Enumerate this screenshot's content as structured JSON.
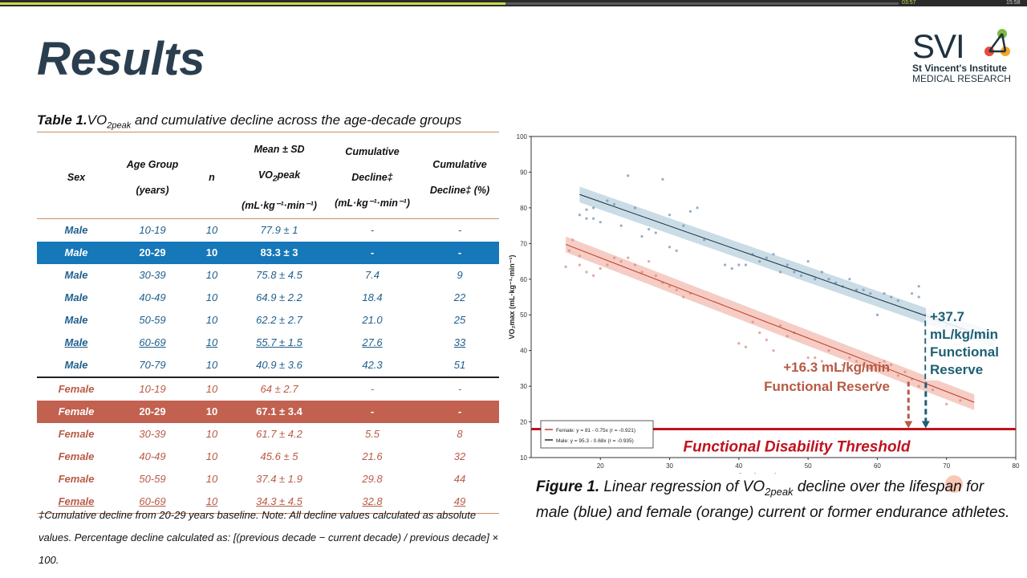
{
  "player": {
    "elapsed": "03:57",
    "total": "15:58",
    "progress": 0.49
  },
  "slide": {
    "title": "Results",
    "logo": {
      "svi": "SVI",
      "line1": "St Vincent's Institute",
      "line2": "MEDICAL RESEARCH"
    }
  },
  "table": {
    "caption_bold": "Table 1.",
    "caption_pre": "VO",
    "caption_sub": "2peak",
    "caption_post": " and cumulative decline across the age-decade groups",
    "headers": {
      "sex": "Sex",
      "age_l1": "Age Group",
      "age_l2": "(years)",
      "n": "n",
      "mean_l1": "Mean ± SD",
      "mean_l2_pre": "VO",
      "mean_l2_sub": "2",
      "mean_l2_post": "peak",
      "mean_l3": "(mL·kg⁻¹·min⁻¹)",
      "cum_l1": "Cumulative",
      "cum_l2": "Decline‡",
      "cum_l3": "(mL·kg⁻¹·min⁻¹)",
      "pct_l1": "Cumulative",
      "pct_l2": "Decline‡ (%)"
    },
    "rows": [
      {
        "sex": "Male",
        "age": "10-19",
        "n": "10",
        "mean": "77.9 ± 1",
        "cum": "-",
        "pct": "-"
      },
      {
        "sex": "Male",
        "age": "20-29",
        "n": "10",
        "mean": "83.3 ± 3",
        "cum": "-",
        "pct": "-"
      },
      {
        "sex": "Male",
        "age": "30-39",
        "n": "10",
        "mean": "75.8 ± 4.5",
        "cum": "7.4",
        "pct": "9"
      },
      {
        "sex": "Male",
        "age": "40-49",
        "n": "10",
        "mean": "64.9 ± 2.2",
        "cum": "18.4",
        "pct": "22"
      },
      {
        "sex": "Male",
        "age": "50-59",
        "n": "10",
        "mean": "62.2 ± 2.7",
        "cum": "21.0",
        "pct": "25"
      },
      {
        "sex": "Male",
        "age": "60-69",
        "n": "10",
        "mean": "55.7 ± 1.5",
        "cum": "27.6",
        "pct": "33"
      },
      {
        "sex": "Male",
        "age": "70-79",
        "n": "10",
        "mean": "40.9 ± 3.6",
        "cum": "42.3",
        "pct": "51"
      },
      {
        "sex": "Female",
        "age": "10-19",
        "n": "10",
        "mean": "64 ± 2.7",
        "cum": "-",
        "pct": "-"
      },
      {
        "sex": "Female",
        "age": "20-29",
        "n": "10",
        "mean": "67.1 ± 3.4",
        "cum": "-",
        "pct": "-"
      },
      {
        "sex": "Female",
        "age": "30-39",
        "n": "10",
        "mean": "61.7 ± 4.2",
        "cum": "5.5",
        "pct": "8"
      },
      {
        "sex": "Female",
        "age": "40-49",
        "n": "10",
        "mean": "45.6 ± 5",
        "cum": "21.6",
        "pct": "32"
      },
      {
        "sex": "Female",
        "age": "50-59",
        "n": "10",
        "mean": "37.4 ± 1.9",
        "cum": "29.8",
        "pct": "44"
      },
      {
        "sex": "Female",
        "age": "60-69",
        "n": "10",
        "mean": "34.3 ± 4.5",
        "cum": "32.8",
        "pct": "49"
      }
    ],
    "footnote": "‡Cumulative decline from 20-29 years baseline. Note: All decline values calculated as absolute values. Percentage decline calculated as: [(previous decade − current decade) / previous decade] × 100."
  },
  "figure": {
    "caption_bold": "Figure 1.",
    "caption_pre": " Linear regression of VO",
    "caption_sub": "2peak",
    "caption_post": " decline over the lifespan for male (blue) and female (orange) current or former endurance athletes."
  },
  "colors": {
    "male": "#1e5f8c",
    "female": "#c2614f",
    "threshold": "#c0121e",
    "male_hl": "#1677b9"
  },
  "chart_data": {
    "type": "scatter",
    "xlabel": "Age (years)",
    "ylabel": "VO₂max (mL·kg⁻¹·min⁻¹)",
    "xlim": [
      10,
      80
    ],
    "ylim": [
      10,
      100
    ],
    "xticks": [
      20,
      30,
      40,
      50,
      60,
      70,
      80
    ],
    "yticks": [
      10,
      20,
      30,
      40,
      50,
      60,
      70,
      80,
      90,
      100
    ],
    "grid": false,
    "legend_placement": "bottom-left",
    "series": [
      {
        "name": "Female: y = 81 - 0.75x (r = -0.921)",
        "color": "#e07b6a",
        "intercept": 81,
        "slope": -0.75,
        "x_range": [
          15,
          74
        ],
        "points": [
          [
            15,
            63.5
          ],
          [
            15.5,
            68
          ],
          [
            16,
            71
          ],
          [
            17,
            64
          ],
          [
            17,
            66.5
          ],
          [
            18,
            62
          ],
          [
            19,
            61
          ],
          [
            20,
            63
          ],
          [
            21,
            64
          ],
          [
            22,
            66
          ],
          [
            23,
            65
          ],
          [
            24,
            66
          ],
          [
            25,
            64
          ],
          [
            26,
            62
          ],
          [
            27,
            65
          ],
          [
            28,
            61
          ],
          [
            29,
            59
          ],
          [
            30,
            58
          ],
          [
            31,
            57
          ],
          [
            32,
            55
          ],
          [
            33,
            56
          ],
          [
            40,
            42
          ],
          [
            41,
            41
          ],
          [
            42,
            48
          ],
          [
            43,
            45
          ],
          [
            44,
            43
          ],
          [
            45,
            40
          ],
          [
            46,
            47
          ],
          [
            47,
            44
          ],
          [
            48,
            45
          ],
          [
            50,
            38
          ],
          [
            51,
            38
          ],
          [
            52,
            37
          ],
          [
            53,
            40
          ],
          [
            54,
            35
          ],
          [
            55,
            36
          ],
          [
            56,
            38
          ],
          [
            57,
            37
          ],
          [
            58,
            36
          ],
          [
            59,
            35
          ],
          [
            60,
            31
          ],
          [
            61,
            37
          ],
          [
            62,
            36
          ],
          [
            63,
            33
          ],
          [
            64,
            34
          ],
          [
            65,
            32
          ],
          [
            66,
            30
          ],
          [
            67,
            31
          ],
          [
            68,
            29
          ],
          [
            70,
            25
          ],
          [
            72,
            26
          ]
        ]
      },
      {
        "name": "Male: y = 95.3 - 0.68x (r = -0.935)",
        "color": "#4a7fa8",
        "intercept": 95.3,
        "slope": -0.68,
        "x_range": [
          17,
          77
        ],
        "points": [
          [
            17,
            78
          ],
          [
            18,
            77
          ],
          [
            18,
            79.5
          ],
          [
            19,
            80
          ],
          [
            19,
            77
          ],
          [
            20,
            76
          ],
          [
            21,
            82
          ],
          [
            22,
            81
          ],
          [
            23,
            75
          ],
          [
            24,
            89
          ],
          [
            25,
            80
          ],
          [
            26,
            72
          ],
          [
            27,
            74
          ],
          [
            28,
            73
          ],
          [
            29,
            88
          ],
          [
            30,
            78
          ],
          [
            30,
            69
          ],
          [
            31,
            68
          ],
          [
            32,
            75
          ],
          [
            33,
            79
          ],
          [
            34,
            80
          ],
          [
            35,
            71
          ],
          [
            38,
            64
          ],
          [
            39,
            63
          ],
          [
            40,
            64
          ],
          [
            41,
            64
          ],
          [
            42,
            67
          ],
          [
            43,
            65
          ],
          [
            44,
            66
          ],
          [
            45,
            67
          ],
          [
            46,
            62
          ],
          [
            47,
            64
          ],
          [
            48,
            62
          ],
          [
            49,
            61
          ],
          [
            50,
            65
          ],
          [
            51,
            60
          ],
          [
            52,
            62
          ],
          [
            53,
            60
          ],
          [
            54,
            59
          ],
          [
            55,
            58
          ],
          [
            56,
            60
          ],
          [
            57,
            57
          ],
          [
            58,
            57
          ],
          [
            59,
            56
          ],
          [
            60,
            50
          ],
          [
            61,
            56
          ],
          [
            62,
            55
          ],
          [
            63,
            54
          ],
          [
            65,
            56
          ],
          [
            66,
            58
          ],
          [
            66,
            55
          ],
          [
            67,
            50
          ],
          [
            68,
            49
          ],
          [
            69,
            48
          ],
          [
            70,
            47
          ],
          [
            72,
            46
          ],
          [
            74,
            44
          ],
          [
            76,
            44
          ]
        ]
      }
    ],
    "threshold": {
      "label": "Functional Disability Threshold",
      "y": 18
    },
    "annotations": {
      "female_reserve": "+16.3 mL/kg/min\nFunctional Reserve",
      "male_reserve": "+37.7\nmL/kg/min\nFunctional\nReserve"
    }
  }
}
